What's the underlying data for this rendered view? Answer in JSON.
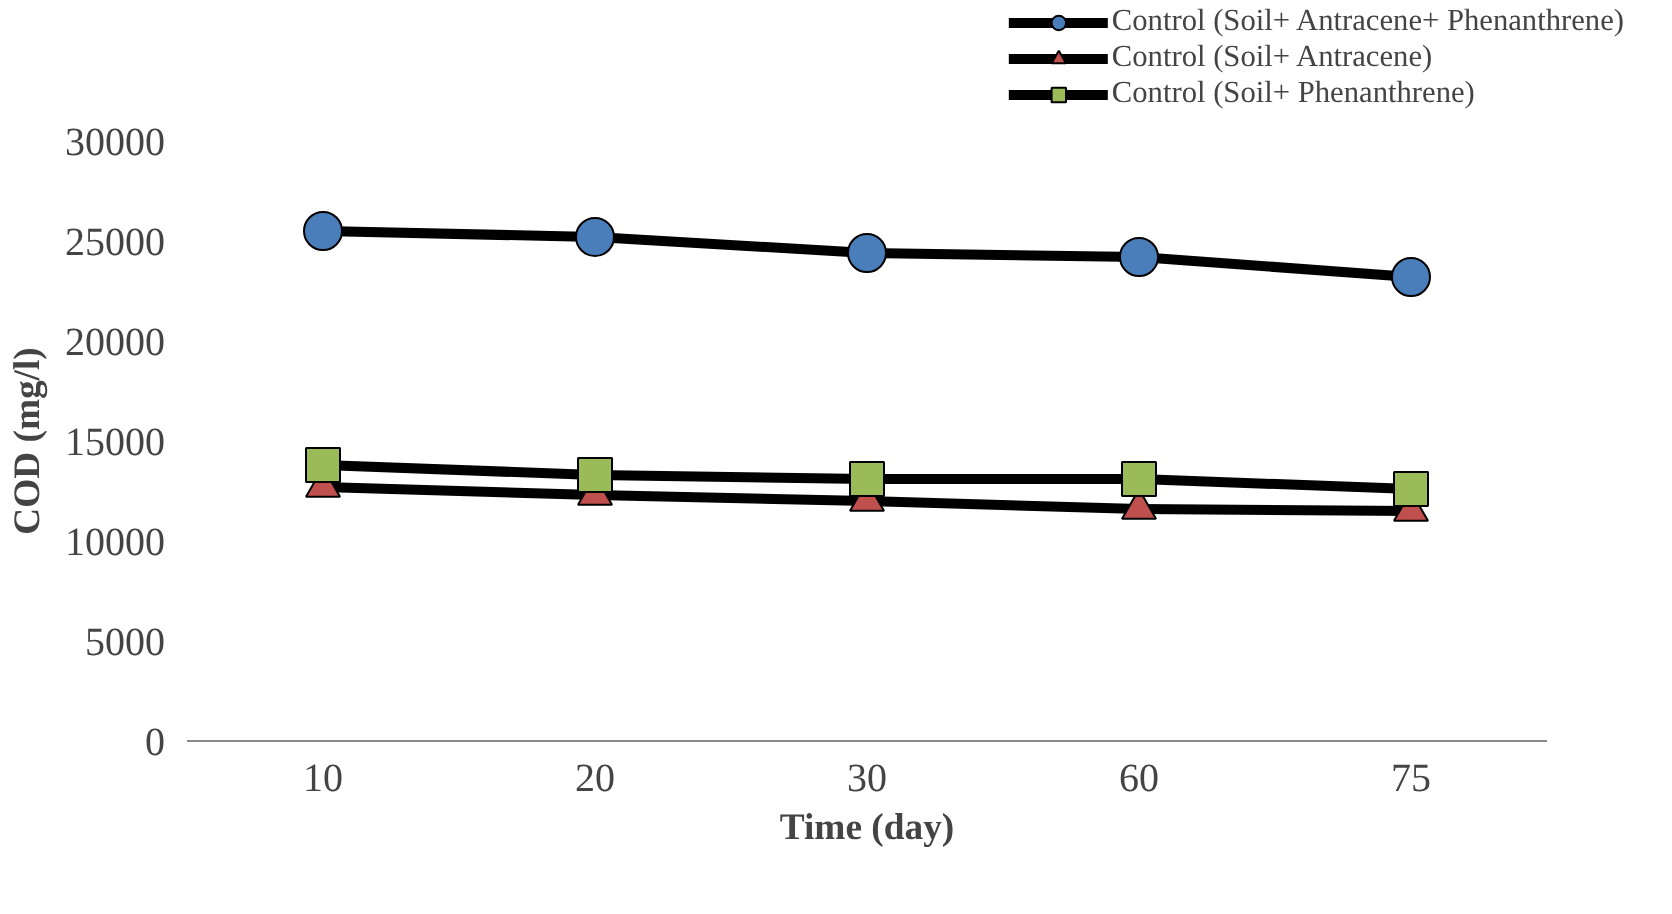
{
  "chart_data": {
    "type": "line",
    "xlabel": "Time (day)",
    "ylabel": "COD (mg/l)",
    "categories": [
      "10",
      "20",
      "30",
      "60",
      "75"
    ],
    "ylim": [
      0,
      30000
    ],
    "yticks": [
      0,
      5000,
      10000,
      15000,
      20000,
      25000,
      30000
    ],
    "grid": false,
    "legend": "top right",
    "line_style": "solid",
    "series": [
      {
        "name": "Control (Soil+ Antracene+ Phenanthrene)",
        "color": "#4a7ebb",
        "marker": "circle",
        "values": [
          25500,
          25200,
          24400,
          24200,
          23200
        ]
      },
      {
        "name": "Control (Soil+ Antracene)",
        "color": "#c0504d",
        "marker": "triangle",
        "values": [
          12700,
          12300,
          12000,
          11600,
          11500
        ]
      },
      {
        "name": "Control (Soil+ Phenanthrene)",
        "color": "#9bbb59",
        "marker": "square",
        "values": [
          13800,
          13300,
          13100,
          13100,
          12600
        ]
      }
    ]
  }
}
